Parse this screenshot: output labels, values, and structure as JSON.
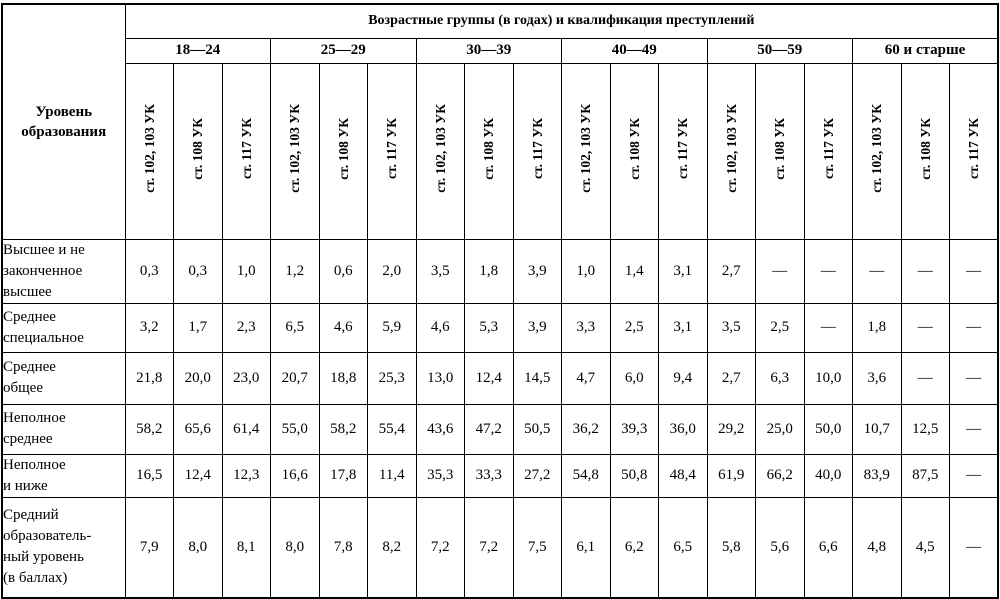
{
  "table": {
    "corner_header": "Уровень\nобразования",
    "group_header": "Возрастные группы (в годах) и квалификация преступлений",
    "age_groups": [
      "18—24",
      "25—29",
      "30—39",
      "40—49",
      "50—59",
      "60 и старше"
    ],
    "article_labels": [
      "ст. 102, 103 УК",
      "ст. 108 УК",
      "ст. 117 УК"
    ],
    "rows": [
      {
        "label": "Высшее и не\nзаконченное\nвысшее",
        "values": [
          "0,3",
          "0,3",
          "1,0",
          "1,2",
          "0,6",
          "2,0",
          "3,5",
          "1,8",
          "3,9",
          "1,0",
          "1,4",
          "3,1",
          "2,7",
          "—",
          "—",
          "—",
          "—",
          "—"
        ]
      },
      {
        "label": "Среднее\nспециальное",
        "values": [
          "3,2",
          "1,7",
          "2,3",
          "6,5",
          "4,6",
          "5,9",
          "4,6",
          "5,3",
          "3,9",
          "3,3",
          "2,5",
          "3,1",
          "3,5",
          "2,5",
          "—",
          "1,8",
          "—",
          "—"
        ]
      },
      {
        "label": "Среднее\nобщее",
        "values": [
          "21,8",
          "20,0",
          "23,0",
          "20,7",
          "18,8",
          "25,3",
          "13,0",
          "12,4",
          "14,5",
          "4,7",
          "6,0",
          "9,4",
          "2,7",
          "6,3",
          "10,0",
          "3,6",
          "—",
          "—"
        ]
      },
      {
        "label": "Неполное\nсреднее",
        "values": [
          "58,2",
          "65,6",
          "61,4",
          "55,0",
          "58,2",
          "55,4",
          "43,6",
          "47,2",
          "50,5",
          "36,2",
          "39,3",
          "36,0",
          "29,2",
          "25,0",
          "50,0",
          "10,7",
          "12,5",
          "—"
        ]
      },
      {
        "label": "Неполное\nи ниже",
        "values": [
          "16,5",
          "12,4",
          "12,3",
          "16,6",
          "17,8",
          "11,4",
          "35,3",
          "33,3",
          "27,2",
          "54,8",
          "50,8",
          "48,4",
          "61,9",
          "66,2",
          "40,0",
          "83,9",
          "87,5",
          "—"
        ]
      },
      {
        "label": "Средний\nобразователь-\nный уровень\n(в баллах)",
        "values": [
          "7,9",
          "8,0",
          "8,1",
          "8,0",
          "7,8",
          "8,2",
          "7,2",
          "7,2",
          "7,5",
          "6,1",
          "6,2",
          "6,5",
          "5,8",
          "5,6",
          "6,6",
          "4,8",
          "4,5",
          "—"
        ]
      }
    ]
  }
}
